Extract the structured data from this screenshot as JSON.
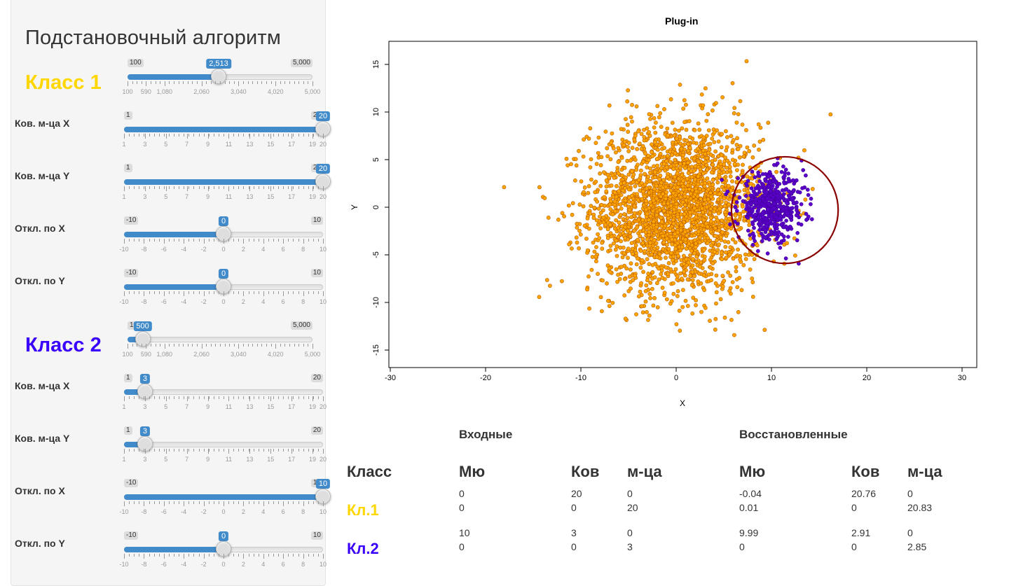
{
  "app_title": "Подстановочный алгоритм",
  "colors": {
    "class1": "#ffd700",
    "class2": "#3a00ff",
    "class1_point": "#ffa500",
    "class2_point": "#5a00c8",
    "circle": "#8b0000",
    "slider_accent": "#428bca"
  },
  "sidebar": {
    "class1": {
      "label": "Класс 1",
      "n_slider": {
        "min_label": "100",
        "max_label": "5,000",
        "value": 2513,
        "value_label": "2,513",
        "min": 100,
        "max": 5000,
        "tick_labels": [
          "100",
          "590",
          "1,080",
          "2,060",
          "3,040",
          "4,020",
          "5,000"
        ]
      },
      "cov_x": {
        "label": "Ков. м-ца X",
        "min_label": "1",
        "max_label": "20",
        "value": 20,
        "value_label": "20",
        "min": 1,
        "max": 20
      },
      "cov_y": {
        "label": "Ков. м-ца Y",
        "min_label": "1",
        "max_label": "20",
        "value": 20,
        "value_label": "20",
        "min": 1,
        "max": 20
      },
      "mu_x": {
        "label": "Откл. по X",
        "min_label": "-10",
        "max_label": "10",
        "value": 0,
        "value_label": "0",
        "min": -10,
        "max": 10
      },
      "mu_y": {
        "label": "Откл. по Y",
        "min_label": "-10",
        "max_label": "10",
        "value": 0,
        "value_label": "0",
        "min": -10,
        "max": 10
      }
    },
    "class2": {
      "label": "Класс 2",
      "n_slider": {
        "min_label": "100",
        "max_label": "5,000",
        "value": 500,
        "value_label": "500",
        "min": 100,
        "max": 5000,
        "tick_labels": [
          "100",
          "590",
          "1,080",
          "2,060",
          "3,040",
          "4,020",
          "5,000"
        ]
      },
      "cov_x": {
        "label": "Ков. м-ца X",
        "min_label": "1",
        "max_label": "20",
        "value": 3,
        "value_label": "3",
        "min": 1,
        "max": 20
      },
      "cov_y": {
        "label": "Ков. м-ца Y",
        "min_label": "1",
        "max_label": "20",
        "value": 3,
        "value_label": "3",
        "min": 1,
        "max": 20
      },
      "mu_x": {
        "label": "Откл. по X",
        "min_label": "-10",
        "max_label": "10",
        "value": 10,
        "value_label": "10",
        "min": -10,
        "max": 10
      },
      "mu_y": {
        "label": "Откл. по Y",
        "min_label": "-10",
        "max_label": "10",
        "value": 0,
        "value_label": "0",
        "min": -10,
        "max": 10
      }
    },
    "cov_tick_labels": [
      "1",
      "3",
      "5",
      "7",
      "9",
      "11",
      "13",
      "15",
      "17",
      "19",
      "20"
    ],
    "mu_tick_labels": [
      "-10",
      "-8",
      "-6",
      "-4",
      "-2",
      "0",
      "2",
      "4",
      "6",
      "8",
      "10"
    ]
  },
  "chart_data": {
    "type": "scatter",
    "title": "Plug-in",
    "xlabel": "X",
    "ylabel": "Y",
    "xlim": [
      -30,
      30
    ],
    "ylim": [
      -16,
      17
    ],
    "x_ticks": [
      "-30",
      "-20",
      "-10",
      "0",
      "10",
      "20",
      "30"
    ],
    "y_ticks": [
      "-15",
      "-10",
      "-5",
      "0",
      "5",
      "10",
      "15"
    ],
    "series": [
      {
        "count": 2513,
        "mean": [
          0,
          0
        ],
        "variance": [
          20,
          20
        ]
      },
      {
        "count": 500,
        "mean": [
          10,
          0
        ],
        "variance": [
          3,
          3
        ]
      }
    ],
    "decision_boundary": {
      "shape": "circle",
      "center": [
        11.4,
        -0.3
      ],
      "radius": 5.6
    }
  },
  "results": {
    "input_header": "Входные",
    "restored_header": "Восстановленные",
    "col_class": "Класс",
    "col_mu": "Мю",
    "col_cov": "Ков",
    "col_cov2": "м-ца",
    "rows": [
      {
        "label": "Кл.1",
        "input": {
          "mu": [
            "0",
            "0"
          ],
          "cov": [
            [
              "20",
              "0"
            ],
            [
              "0",
              "20"
            ]
          ]
        },
        "restored": {
          "mu": [
            "-0.04",
            "0.01"
          ],
          "cov": [
            [
              "20.76",
              "0"
            ],
            [
              "0",
              "20.83"
            ]
          ]
        }
      },
      {
        "label": "Кл.2",
        "input": {
          "mu": [
            "10",
            "0"
          ],
          "cov": [
            [
              "3",
              "0"
            ],
            [
              "0",
              "3"
            ]
          ]
        },
        "restored": {
          "mu": [
            "9.99",
            "0"
          ],
          "cov": [
            [
              "2.91",
              "0"
            ],
            [
              "0",
              "2.85"
            ]
          ]
        }
      }
    ]
  }
}
